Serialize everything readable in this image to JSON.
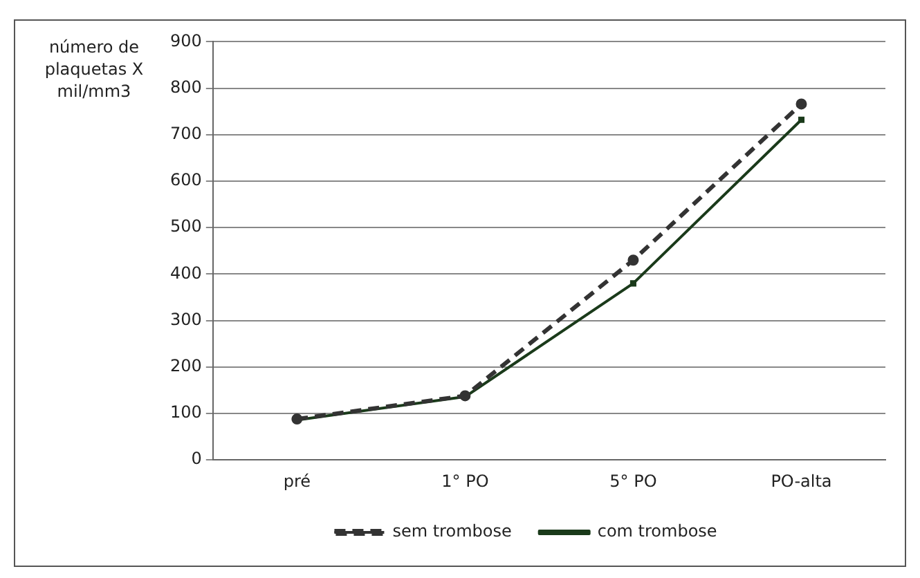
{
  "chart_data": {
    "type": "line",
    "ylabel": "número de plaquetas X mil/mm3",
    "categories": [
      "pré",
      "1° PO",
      "5° PO",
      "PO-alta"
    ],
    "series": [
      {
        "name": "sem trombose",
        "color": "#333333",
        "values": [
          88,
          138,
          430,
          766
        ],
        "line_style": "dashed",
        "marker": "circle"
      },
      {
        "name": "com trombose",
        "color": "#1a3a1a",
        "values": [
          86,
          136,
          380,
          732
        ],
        "line_style": "solid",
        "marker": "square"
      }
    ],
    "ylim": [
      0,
      900
    ],
    "yticks": [
      0,
      100,
      200,
      300,
      400,
      500,
      600,
      700,
      800,
      900
    ],
    "grid": "y",
    "legend": "bottom"
  }
}
